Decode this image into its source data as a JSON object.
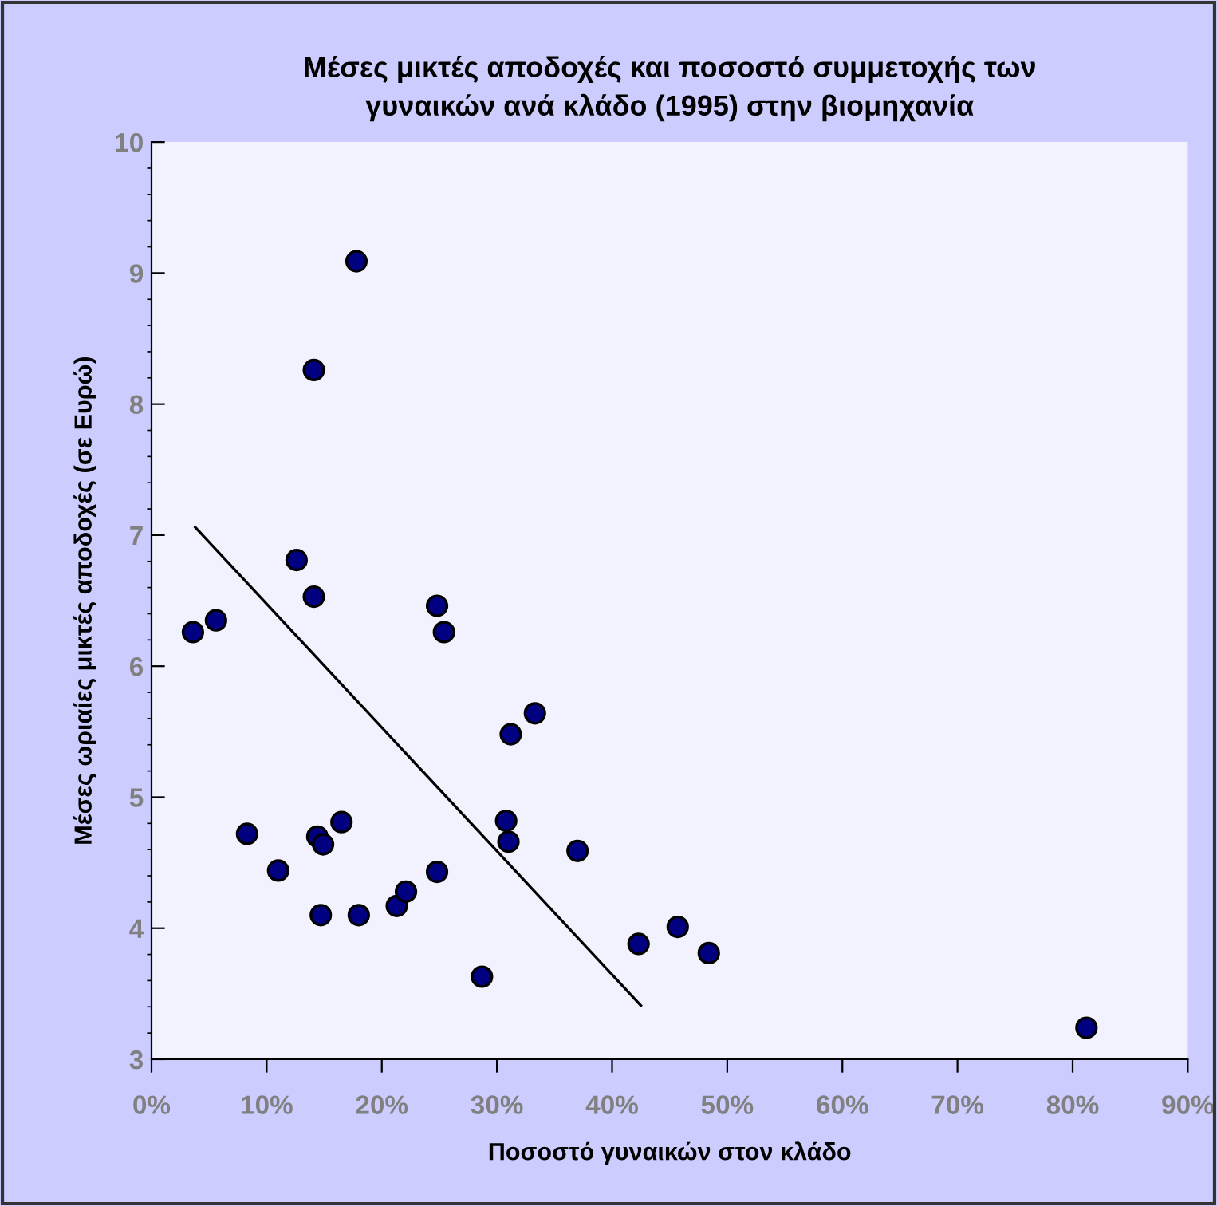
{
  "chart_data": {
    "type": "scatter",
    "title": "Μέσες μικτές αποδοχές και ποσοστό συμμετοχής των\nγυναικών ανά κλάδο (1995) στην βιομηχανία",
    "xlabel": "Ποσοστό γυναικών στον κλάδο",
    "ylabel": "Μέσες ωριαίες μικτές αποδοχές (σε Ευρώ)",
    "xlim": [
      0,
      90
    ],
    "xticks": [
      {
        "value": 0,
        "label": "0%"
      },
      {
        "value": 10,
        "label": "10%"
      },
      {
        "value": 20,
        "label": "20%"
      },
      {
        "value": 30,
        "label": "30%"
      },
      {
        "value": 40,
        "label": "40%"
      },
      {
        "value": 50,
        "label": "50%"
      },
      {
        "value": 60,
        "label": "60%"
      },
      {
        "value": 70,
        "label": "70%"
      },
      {
        "value": 80,
        "label": "80%"
      },
      {
        "value": 90,
        "label": "90%"
      }
    ],
    "ylim": [
      3,
      10
    ],
    "yticks": [
      3,
      4,
      5,
      6,
      7,
      8,
      9,
      10
    ],
    "grid": false,
    "legend": false,
    "series": [
      {
        "marker": "circle",
        "color": "#000080",
        "x": [
          8.3,
          11.0,
          14.4,
          14.9,
          16.5,
          14.7,
          18.0,
          21.3,
          22.1,
          24.8,
          28.7,
          30.8,
          31.0,
          31.2,
          33.3,
          37.0,
          42.3,
          45.7,
          48.4,
          17.8,
          14.1,
          12.6,
          14.1,
          3.6,
          5.6,
          24.8,
          25.4,
          81.2
        ],
        "values": [
          4.72,
          4.44,
          4.7,
          4.64,
          4.81,
          4.1,
          4.1,
          4.17,
          4.28,
          4.43,
          3.63,
          4.82,
          4.66,
          5.48,
          5.64,
          4.59,
          3.88,
          4.01,
          3.81,
          9.09,
          8.26,
          6.81,
          6.53,
          6.26,
          6.35,
          6.46,
          6.26,
          3.24
        ]
      },
      {
        "type": "line",
        "color": "#000000",
        "line_style": "solid",
        "x": [
          3.8,
          42.5
        ],
        "values": [
          7.06,
          3.41
        ]
      }
    ]
  }
}
